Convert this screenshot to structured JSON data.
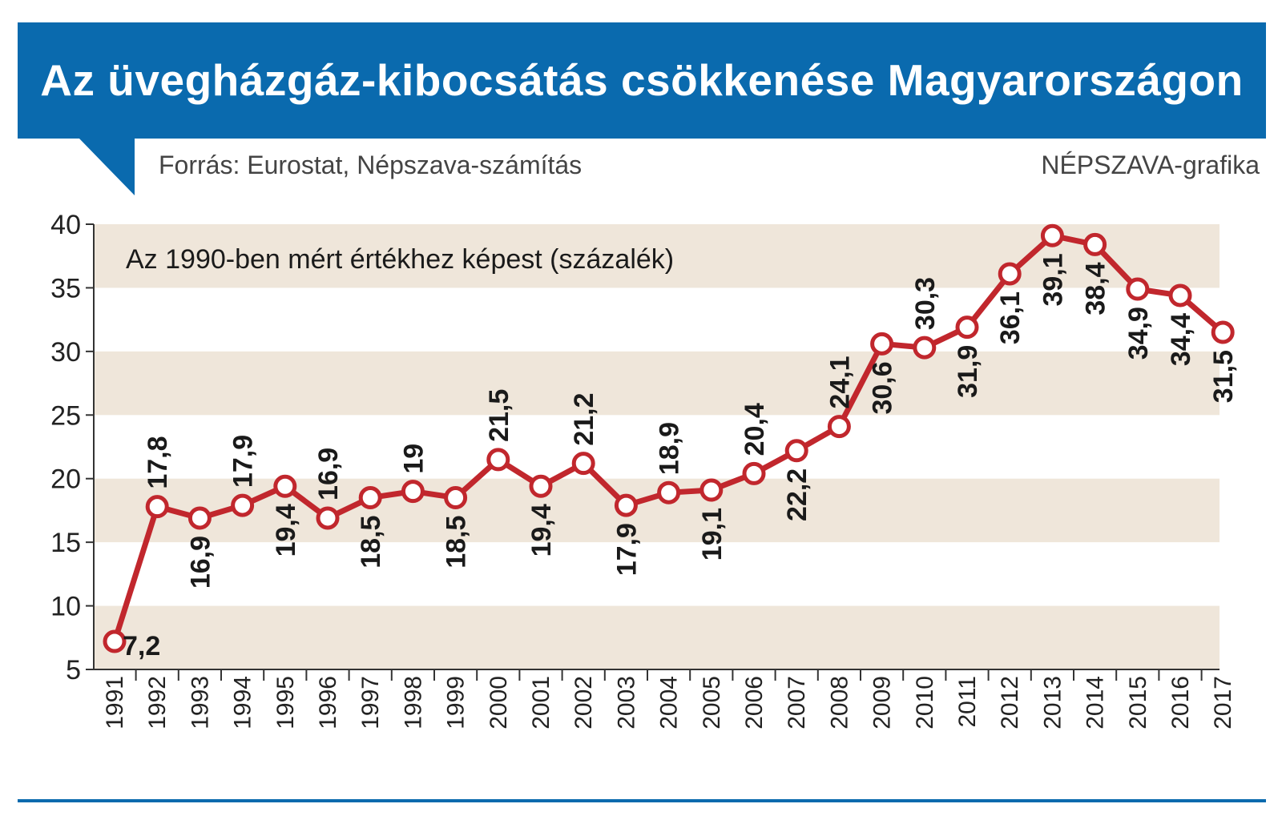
{
  "header": {
    "title": "Az üvegházgáz-kibocsátás csökkenése Magyarországon",
    "source": "Forrás:  Eurostat, Népszava-számítás",
    "credit": "NÉPSZAVA-grafika"
  },
  "colors": {
    "banner": "#0a6aae",
    "band": "#efe6da",
    "line": "#c1272d",
    "marker_fill": "#ffffff"
  },
  "chart_data": {
    "type": "line",
    "title": "Az üvegházgáz-kibocsátás csökkenése Magyarországon",
    "subtitle": "Az 1990-ben mért értékhez képest (százalék)",
    "xlabel": "",
    "ylabel": "",
    "ylim": [
      5,
      40
    ],
    "yticks": [
      5,
      10,
      15,
      20,
      25,
      30,
      35,
      40
    ],
    "categories": [
      "1991",
      "1992",
      "1993",
      "1994",
      "1995",
      "1996",
      "1997",
      "1998",
      "1999",
      "2000",
      "2001",
      "2002",
      "2003",
      "2004",
      "2005",
      "2006",
      "2007",
      "2008",
      "2009",
      "2010",
      "2011",
      "2012",
      "2013",
      "2014",
      "2015",
      "2016",
      "2017"
    ],
    "values": [
      7.2,
      17.8,
      16.9,
      17.9,
      19.4,
      16.9,
      18.5,
      19,
      18.5,
      21.5,
      19.4,
      21.2,
      17.9,
      18.9,
      19.1,
      20.4,
      22.2,
      24.1,
      30.6,
      30.3,
      31.9,
      36.1,
      39.1,
      38.4,
      34.9,
      34.4,
      31.5
    ],
    "labels": [
      "7,2",
      "17,8",
      "16,9",
      "17,9",
      "19,4",
      "16,9",
      "18,5",
      "19",
      "18,5",
      "21,5",
      "19,4",
      "21,2",
      "17,9",
      "18,9",
      "19,1",
      "20,4",
      "22,2",
      "24,1",
      "30,6",
      "30,3",
      "31,9",
      "36,1",
      "39,1",
      "38,4",
      "34,9",
      "34,4",
      "31,5"
    ],
    "label_side": [
      "right",
      "above",
      "below",
      "above",
      "below",
      "above",
      "below",
      "above",
      "below",
      "above",
      "below",
      "above",
      "below",
      "above",
      "below",
      "above",
      "below",
      "above",
      "below",
      "above",
      "below",
      "below",
      "below",
      "below",
      "below",
      "below",
      "below"
    ],
    "grid": false,
    "legend": "none"
  }
}
